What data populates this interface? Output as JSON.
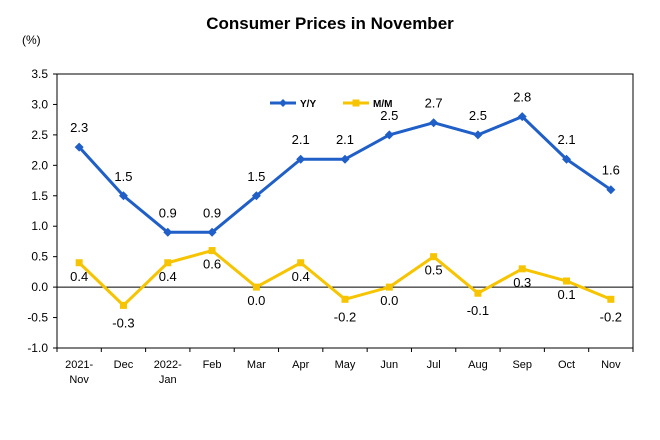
{
  "chart_data": {
    "type": "line",
    "title": "Consumer Prices in November",
    "unit_label": "(%)",
    "ylim": [
      -1.0,
      3.5
    ],
    "y_ticks": [
      "3.5",
      "3.0",
      "2.5",
      "2.0",
      "1.5",
      "1.0",
      "0.5",
      "0.0",
      "-0.5",
      "-1.0"
    ],
    "y_tick_values": [
      3.5,
      3.0,
      2.5,
      2.0,
      1.5,
      1.0,
      0.5,
      0.0,
      -0.5,
      -1.0
    ],
    "categories": [
      [
        "2021-",
        "Nov"
      ],
      [
        "Dec"
      ],
      [
        "2022-",
        "Jan"
      ],
      [
        "Feb"
      ],
      [
        "Mar"
      ],
      [
        "Apr"
      ],
      [
        "May"
      ],
      [
        "Jun"
      ],
      [
        "Jul"
      ],
      [
        "Aug"
      ],
      [
        "Sep"
      ],
      [
        "Oct"
      ],
      [
        "Nov"
      ]
    ],
    "legend_position": "top-center",
    "grid": false,
    "series": [
      {
        "name": "Y/Y",
        "color": "#1f5fc7",
        "marker": "diamond",
        "values": [
          2.3,
          1.5,
          0.9,
          0.9,
          1.5,
          2.1,
          2.1,
          2.5,
          2.7,
          2.5,
          2.8,
          2.1,
          1.6
        ],
        "labels": [
          "2.3",
          "1.5",
          "0.9",
          "0.9",
          "1.5",
          "2.1",
          "2.1",
          "2.5",
          "2.7",
          "2.5",
          "2.8",
          "2.1",
          "1.6"
        ]
      },
      {
        "name": "M/M",
        "color": "#f6c400",
        "marker": "square",
        "values": [
          0.4,
          -0.3,
          0.4,
          0.6,
          0.0,
          0.4,
          -0.2,
          0.0,
          0.5,
          -0.1,
          0.3,
          0.1,
          -0.2
        ],
        "labels": [
          "0.4",
          "-0.3",
          "0.4",
          "0.6",
          "0.0",
          "0.4",
          "-0.2",
          "0.0",
          "0.5",
          "-0.1",
          "0.3",
          "0.1",
          "-0.2"
        ]
      }
    ]
  }
}
